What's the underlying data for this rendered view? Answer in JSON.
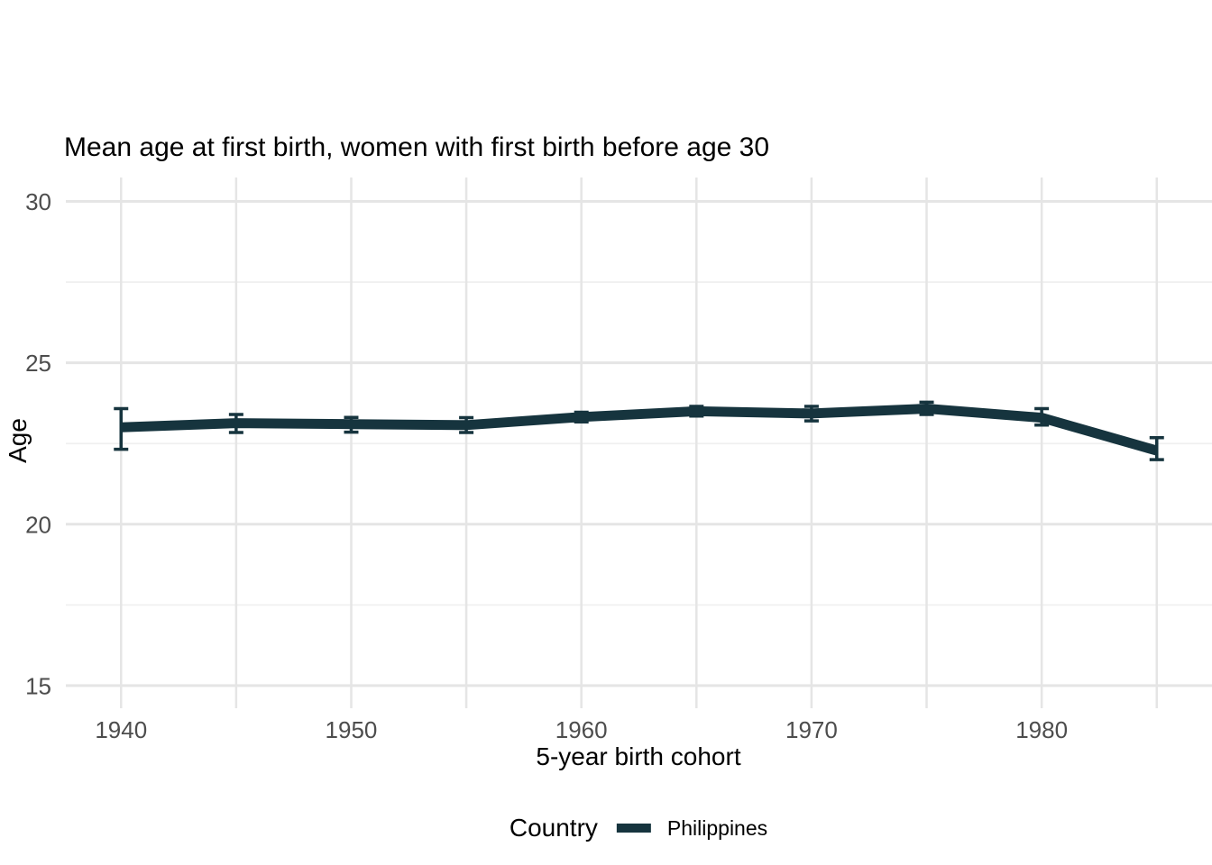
{
  "title": "Mean age at first birth, women with first birth before age 30",
  "chart_data": {
    "type": "line",
    "title": "Mean age at first birth, women with first birth before age 30",
    "xlabel": "5-year birth cohort",
    "ylabel": "Age",
    "x": [
      1940,
      1945,
      1950,
      1955,
      1960,
      1965,
      1970,
      1975,
      1980,
      1985
    ],
    "series": [
      {
        "name": "Philippines",
        "color": "#16343e",
        "values": [
          23.0,
          23.13,
          23.1,
          23.07,
          23.32,
          23.5,
          23.43,
          23.58,
          23.3,
          22.28
        ],
        "ci_lower": [
          22.32,
          22.84,
          22.85,
          22.84,
          23.17,
          23.35,
          23.2,
          23.4,
          23.07,
          22.0
        ],
        "ci_upper": [
          23.58,
          23.4,
          23.31,
          23.3,
          23.47,
          23.65,
          23.65,
          23.78,
          23.58,
          22.68
        ]
      }
    ],
    "xlim": [
      1937.6,
      1987.4
    ],
    "ylim": [
      14.3,
      30.74
    ],
    "x_gridlines": [
      1940,
      1945,
      1950,
      1955,
      1960,
      1965,
      1970,
      1975,
      1980,
      1985
    ],
    "x_tick_labels": [
      "1940",
      "",
      "1950",
      "",
      "1960",
      "",
      "1970",
      "",
      "1980",
      ""
    ],
    "y_major_ticks": [
      15,
      20,
      25,
      30
    ],
    "y_major_labels": [
      "15",
      "20",
      "25",
      "30"
    ],
    "y_minor_gridlines": [
      17.5,
      22.5,
      27.5
    ],
    "grid": true,
    "legend_position": "bottom"
  },
  "legend": {
    "title": "Country",
    "items": [
      {
        "label": "Philippines",
        "color": "#16343e"
      }
    ]
  },
  "colors": {
    "line": "#16343e",
    "grid_major": "#e5e5e5",
    "grid_minor": "#f0f0f0",
    "tick_label": "#4d4d4d",
    "text": "#000000",
    "background": "#ffffff"
  }
}
